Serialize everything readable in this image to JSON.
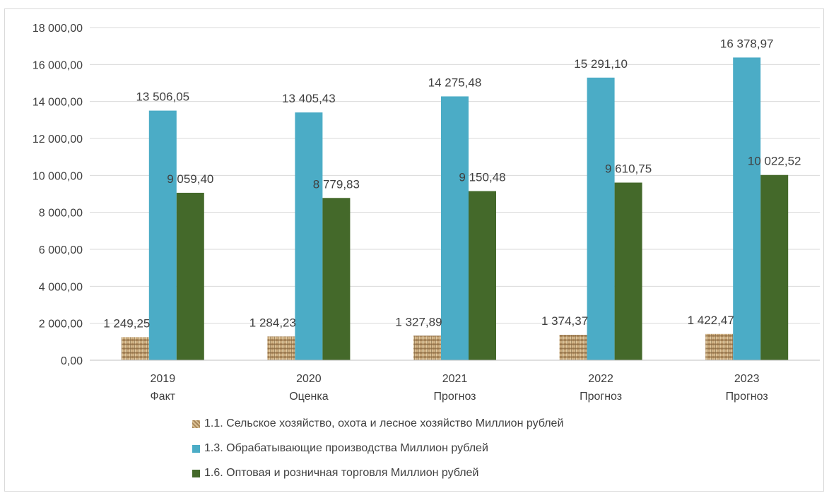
{
  "chart_data": {
    "type": "bar",
    "title": "",
    "xlabel": "",
    "ylabel": "",
    "ylim": [
      0,
      18000
    ],
    "yticks": [
      "0,00",
      "2 000,00",
      "4 000,00",
      "6 000,00",
      "8 000,00",
      "10 000,00",
      "12 000,00",
      "14 000,00",
      "16 000,00",
      "18 000,00"
    ],
    "categories": [
      {
        "year": "2019",
        "status": "Факт"
      },
      {
        "year": "2020",
        "status": "Оценка"
      },
      {
        "year": "2021",
        "status": "Прогноз"
      },
      {
        "year": "2022",
        "status": "Прогноз"
      },
      {
        "year": "2023",
        "status": "Прогноз"
      }
    ],
    "series": [
      {
        "name": "1.1.  Сельское хозяйство, охота и лесное хозяйство Миллион рублей",
        "color": "#c8a878",
        "pattern": "burlap",
        "values": [
          1249.25,
          1284.23,
          1327.89,
          1374.37,
          1422.47
        ],
        "labels": [
          "1 249,25",
          "1 284,23",
          "1 327,89",
          "1 374,37",
          "1 422,47"
        ]
      },
      {
        "name": "1.3. Обрабатывающие производства Миллион рублей",
        "color": "#4bacc6",
        "values": [
          13506.05,
          13405.43,
          14275.48,
          15291.1,
          16378.97
        ],
        "labels": [
          "13 506,05",
          "13 405,43",
          "14 275,48",
          "15 291,10",
          "16 378,97"
        ]
      },
      {
        "name": "1.6. Оптовая и розничная торговля Миллион рублей",
        "color": "#44692a",
        "values": [
          9059.4,
          8779.83,
          9150.48,
          9610.75,
          10022.52
        ],
        "labels": [
          "9 059,40",
          "8 779,83",
          "9 150,48",
          "9 610,75",
          "10 022,52"
        ]
      }
    ],
    "grid": true,
    "legend_position": "bottom"
  }
}
